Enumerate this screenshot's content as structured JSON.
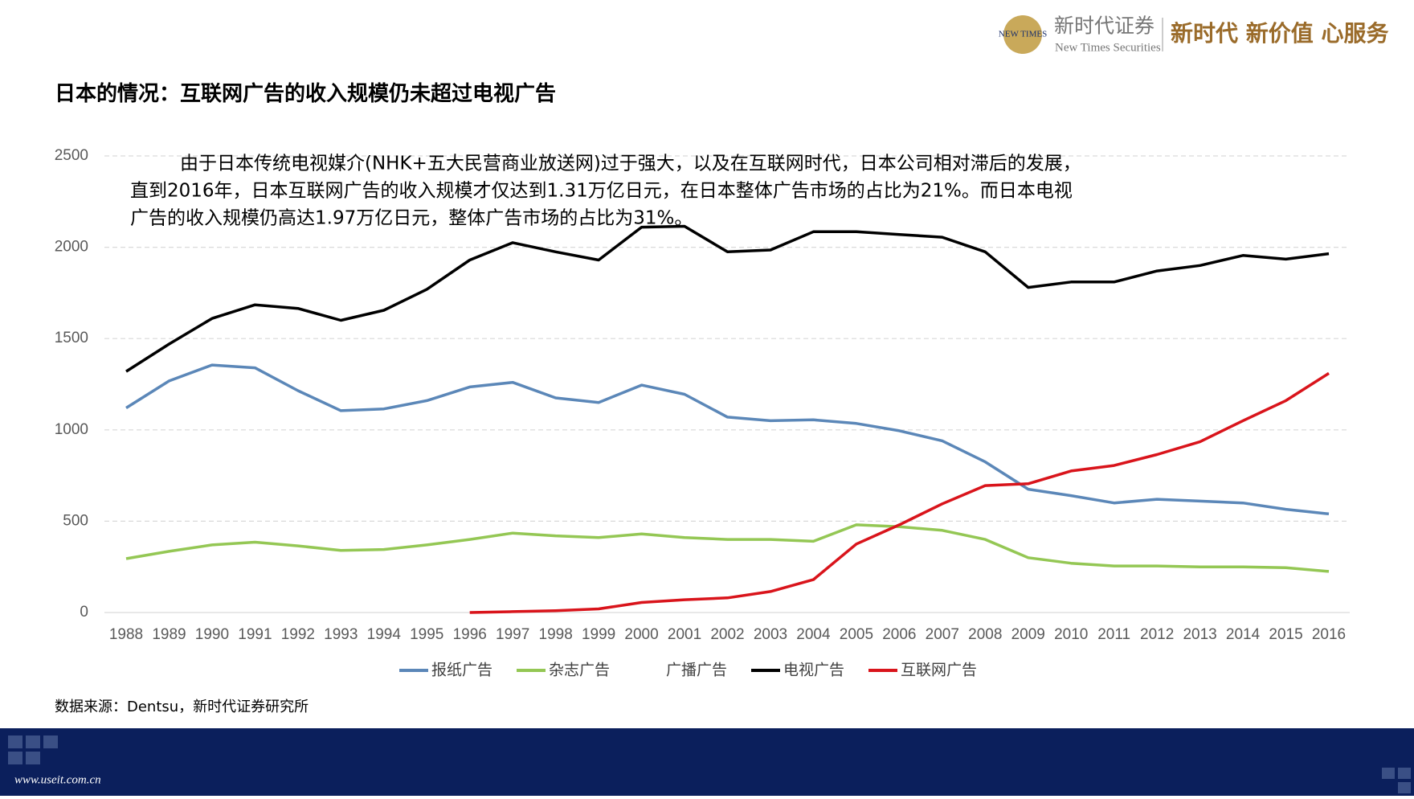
{
  "header": {
    "logo_mark": "NEW TIMES",
    "company": "新时代证券",
    "company_en": "New Times Securities",
    "slogan": "新时代 新价值 心服务"
  },
  "chart_data": {
    "type": "line",
    "title": "日本的情况：互联网广告的收入规模仍未超过电视广告",
    "annotation": [
      "由于日本传统电视媒介(NHK+五大民营商业放送网)过于强大，以及在互联网时代，日本公司相对滞后的发展，",
      "直到2016年，日本互联网广告的收入规模才仅达到1.31万亿日元，在日本整体广告市场的占比为21%。而日本电视",
      "广告的收入规模仍高达1.97万亿日元，整体广告市场的占比为31%。"
    ],
    "categories": [
      "1988",
      "1989",
      "1990",
      "1991",
      "1992",
      "1993",
      "1994",
      "1995",
      "1996",
      "1997",
      "1998",
      "1999",
      "2000",
      "2001",
      "2002",
      "2003",
      "2004",
      "2005",
      "2006",
      "2007",
      "2008",
      "2009",
      "2010",
      "2011",
      "2012",
      "2013",
      "2014",
      "2015",
      "2016"
    ],
    "series": [
      {
        "name": "报纸广告",
        "color": "#5b87b8",
        "values": [
          1120,
          1268,
          1355,
          1340,
          1215,
          1105,
          1115,
          1160,
          1235,
          1260,
          1175,
          1150,
          1245,
          1195,
          1070,
          1050,
          1055,
          1035,
          995,
          940,
          825,
          675,
          640,
          600,
          620,
          610,
          600,
          565,
          540
        ]
      },
      {
        "name": "杂志广告",
        "color": "#94c754",
        "values": [
          295,
          335,
          370,
          385,
          365,
          340,
          345,
          370,
          400,
          435,
          420,
          410,
          430,
          410,
          400,
          400,
          390,
          480,
          470,
          450,
          400,
          300,
          270,
          255,
          255,
          250,
          250,
          245,
          225
        ]
      },
      {
        "name": "广播广告",
        "color": "#ffffff",
        "values": [
          null,
          null,
          null,
          null,
          null,
          null,
          null,
          null,
          null,
          null,
          null,
          null,
          null,
          null,
          null,
          null,
          null,
          null,
          null,
          null,
          null,
          null,
          null,
          null,
          null,
          null,
          null,
          null,
          null
        ]
      },
      {
        "name": "电视广告",
        "color": "#000000",
        "values": [
          1320,
          1470,
          1610,
          1685,
          1665,
          1600,
          1655,
          1770,
          1930,
          2025,
          1975,
          1930,
          2110,
          2115,
          1975,
          1985,
          2085,
          2085,
          2070,
          2055,
          1975,
          1780,
          1810,
          1810,
          1870,
          1900,
          1955,
          1935,
          1965
        ]
      },
      {
        "name": "互联网广告",
        "color": "#d9141b",
        "values": [
          null,
          null,
          null,
          null,
          null,
          null,
          null,
          null,
          0,
          5,
          10,
          20,
          55,
          70,
          80,
          115,
          180,
          375,
          480,
          595,
          695,
          705,
          775,
          805,
          865,
          935,
          1050,
          1160,
          1310
        ]
      }
    ],
    "ylim": [
      0,
      2500
    ],
    "yticks": [
      0,
      500,
      1000,
      1500,
      2000,
      2500
    ],
    "grid": true,
    "source": "数据来源：Dentsu，新时代证券研究所"
  },
  "footer": {
    "url": "www.useit.com.cn"
  }
}
